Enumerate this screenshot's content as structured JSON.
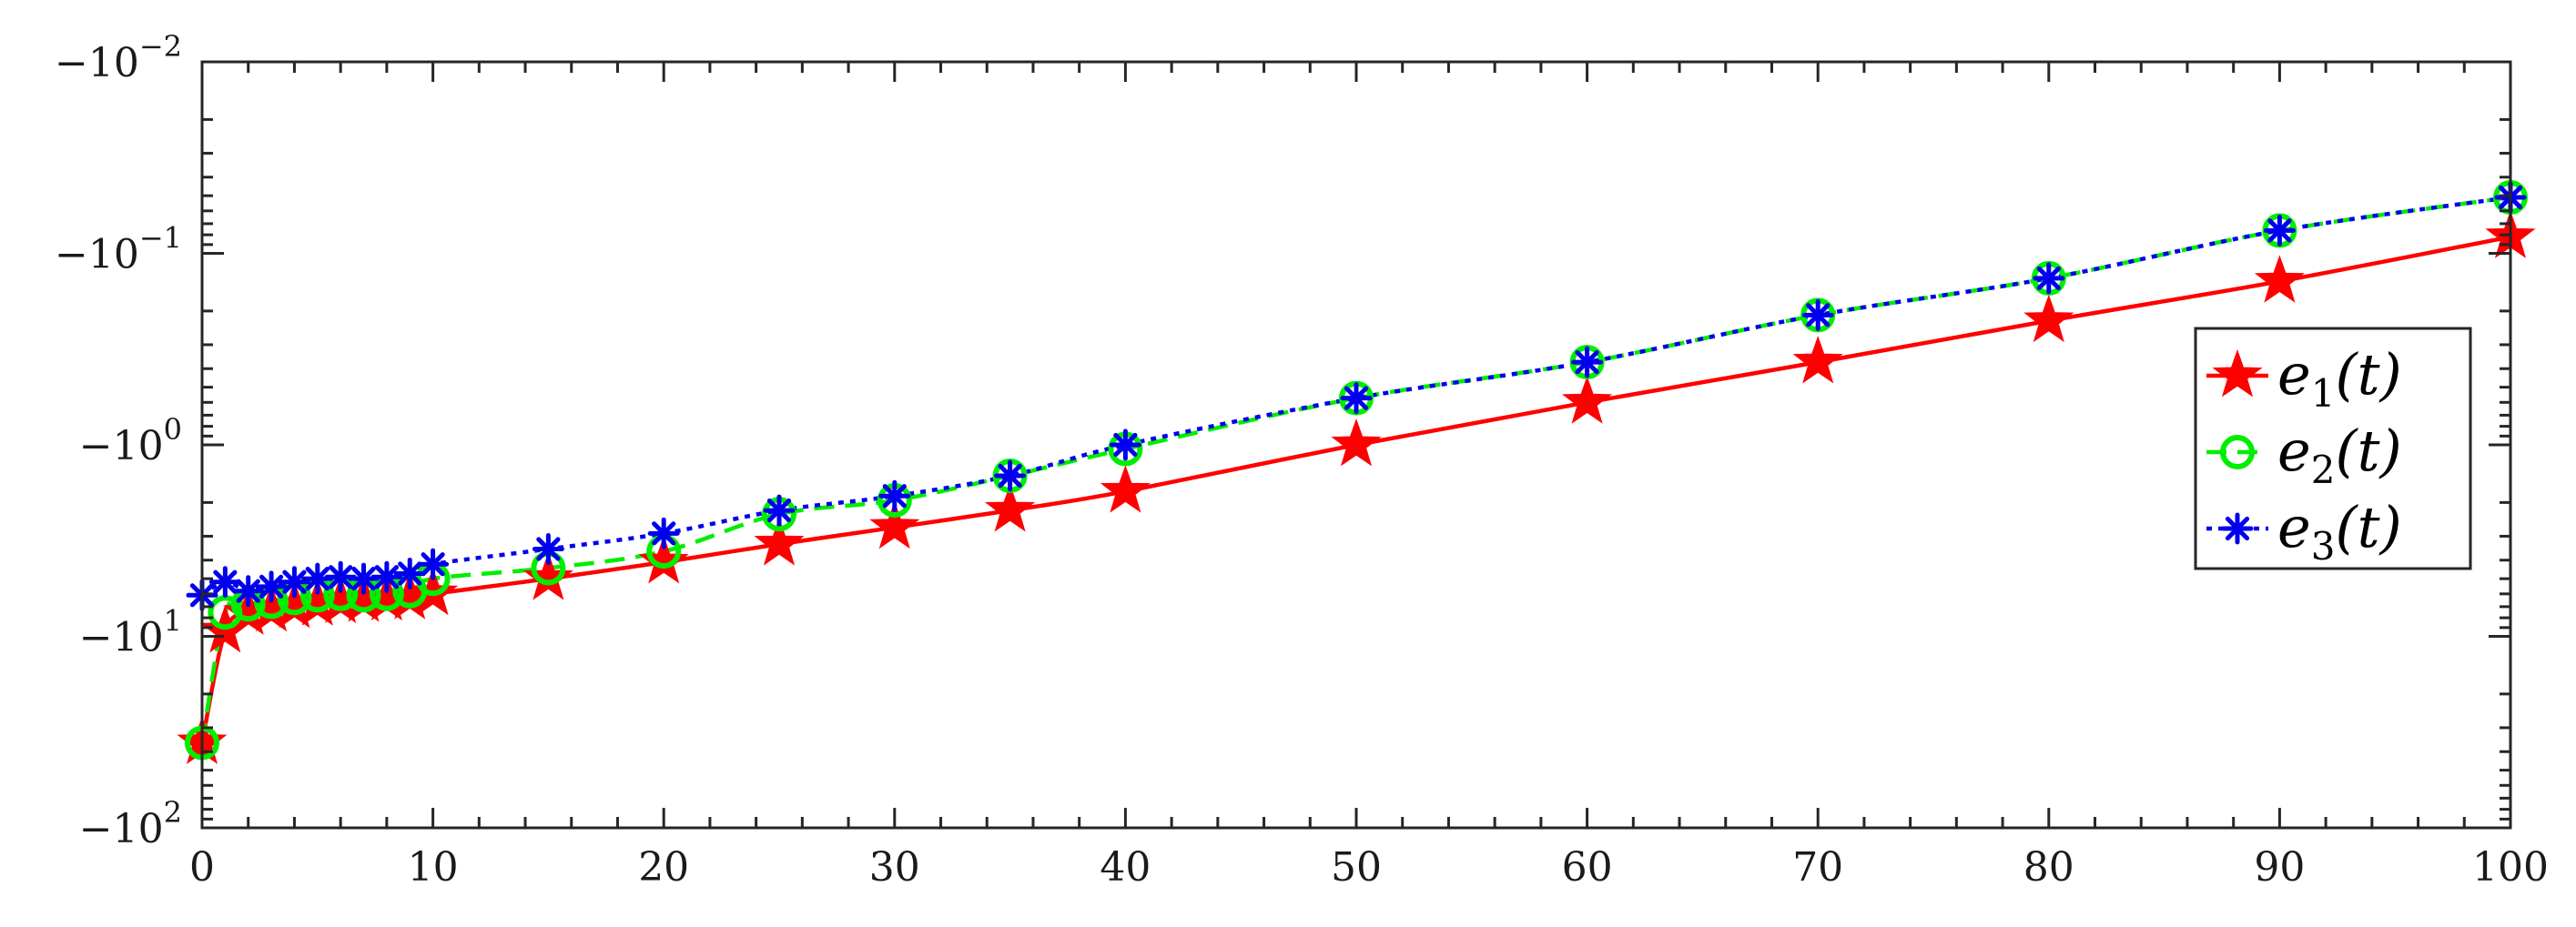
{
  "chart_data": {
    "type": "line",
    "title": "",
    "xlabel": "",
    "ylabel": "",
    "x_ticks": [
      0,
      10,
      20,
      30,
      40,
      50,
      60,
      70,
      80,
      90,
      100
    ],
    "xlim": [
      0,
      100
    ],
    "y_scale": "log",
    "y_reversed": true,
    "y_ticks": [
      {
        "value": -0.01,
        "base": "−10",
        "exp": "−2"
      },
      {
        "value": -0.1,
        "base": "−10",
        "exp": "−1"
      },
      {
        "value": -1,
        "base": "−10",
        "exp": "0"
      },
      {
        "value": -10,
        "base": "−10",
        "exp": "1"
      },
      {
        "value": -100,
        "base": "−10",
        "exp": "2"
      }
    ],
    "ylim": [
      -0.01,
      -100
    ],
    "legend": {
      "position": "right",
      "entries": [
        {
          "base": "e",
          "sub": "1",
          "arg": "(t)"
        },
        {
          "base": "e",
          "sub": "2",
          "arg": "(t)"
        },
        {
          "base": "e",
          "sub": "3",
          "arg": "(t)"
        }
      ]
    },
    "series": [
      {
        "color": "#ff0000",
        "marker": "star",
        "dash": "solid",
        "x": [
          0,
          1,
          2,
          3,
          4,
          5,
          6,
          7,
          8,
          9,
          10,
          15,
          20,
          25,
          30,
          35,
          40,
          50,
          60,
          70,
          80,
          90,
          100
        ],
        "y": [
          -36,
          -9.4,
          -7.6,
          -7.3,
          -7.0,
          -6.8,
          -6.6,
          -6.5,
          -6.4,
          -6.3,
          -6.0,
          -5.0,
          -4.1,
          -3.3,
          -2.7,
          -2.2,
          -1.75,
          -1.0,
          -0.6,
          -0.37,
          -0.225,
          -0.14,
          -0.082
        ]
      },
      {
        "color": "#00ee00",
        "marker": "circle",
        "dash": "dashed",
        "x": [
          0,
          1,
          2,
          3,
          4,
          5,
          6,
          7,
          8,
          9,
          10,
          15,
          20,
          25,
          30,
          35,
          40,
          50,
          60,
          70,
          80,
          90,
          100
        ],
        "y": [
          -36,
          -7.5,
          -6.8,
          -6.6,
          -6.3,
          -6.1,
          -6.0,
          -6.1,
          -6.0,
          -5.8,
          -5.0,
          -4.4,
          -3.6,
          -2.3,
          -1.95,
          -1.45,
          -1.05,
          -0.57,
          -0.37,
          -0.21,
          -0.135,
          -0.076,
          -0.051
        ]
      },
      {
        "color": "#0000ee",
        "marker": "asterisk",
        "dash": "dotted",
        "x": [
          0,
          1,
          2,
          3,
          4,
          5,
          6,
          7,
          8,
          9,
          10,
          15,
          20,
          25,
          30,
          35,
          40,
          50,
          60,
          70,
          80,
          90,
          100
        ],
        "y": [
          -6.1,
          -5.2,
          -5.8,
          -5.5,
          -5.2,
          -5.0,
          -4.9,
          -5.0,
          -4.9,
          -4.7,
          -4.2,
          -3.5,
          -2.9,
          -2.2,
          -1.85,
          -1.45,
          -1.0,
          -0.57,
          -0.37,
          -0.21,
          -0.135,
          -0.076,
          -0.051
        ]
      }
    ]
  }
}
